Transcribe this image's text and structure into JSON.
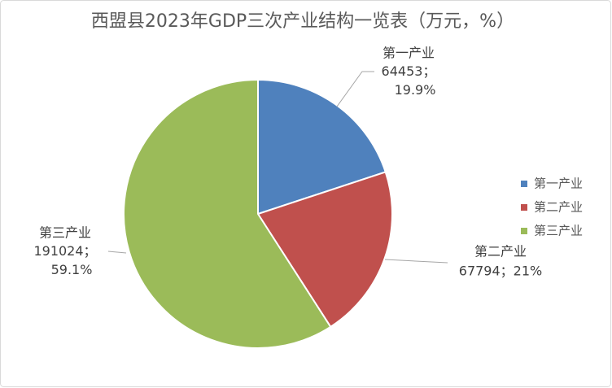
{
  "chart_data": {
    "type": "pie",
    "title": "西盟县2023年GDP三次产业结构一览表（万元，%）",
    "categories": [
      "第一产业",
      "第二产业",
      "第三产业"
    ],
    "values": [
      64453,
      67794,
      191024
    ],
    "value_labels": [
      "64453；19.9%",
      "67794；21%",
      "191024；59.1%"
    ],
    "colors": [
      "#4f81bd",
      "#c0504d",
      "#9bbb59"
    ],
    "legend": "right"
  }
}
